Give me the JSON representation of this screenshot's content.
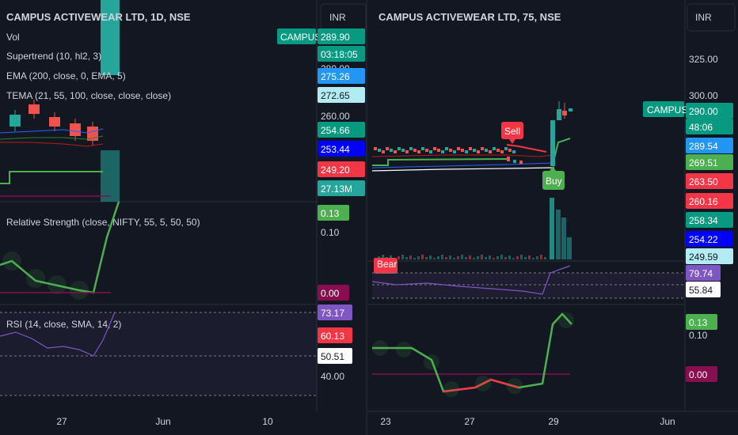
{
  "colors": {
    "bg": "#131722",
    "grid": "#1e222d",
    "up": "#26a69a",
    "down": "#ef5350",
    "green": "#4caf50",
    "red": "#f23645",
    "purple": "#7e57c2",
    "maroon": "#880e4f",
    "text": "#d1d4dc"
  },
  "left": {
    "title": "CAMPUS ACTIVEWEAR LTD, 1D, NSE",
    "currency": "INR",
    "indicators": [
      "Vol",
      "Supertrend (10, hl2, 3)",
      "EMA (200, close, 0, EMA, 5)",
      "TEMA (21, 55, 100, close, close, close)"
    ],
    "symbol_tag": "CAMPUS",
    "price_tags": [
      {
        "text": "289.90",
        "bg": "#089981",
        "fg": "#ffffff"
      },
      {
        "text": "03:18:05",
        "bg": "#089981",
        "fg": "#ffffff"
      },
      {
        "text": "280.00",
        "bg": "",
        "fg": "#d1d4dc"
      },
      {
        "text": "275.26",
        "bg": "#2196f3",
        "fg": "#ffffff"
      },
      {
        "text": "272.65",
        "bg": "#b2ebf2",
        "fg": "#131722"
      },
      {
        "text": "260.00",
        "bg": "",
        "fg": "#d1d4dc"
      },
      {
        "text": "254.66",
        "bg": "#089981",
        "fg": "#ffffff"
      },
      {
        "text": "253.44",
        "bg": "#0000ff",
        "fg": "#ffffff"
      },
      {
        "text": "249.20",
        "bg": "#f23645",
        "fg": "#ffffff"
      },
      {
        "text": "27.13M",
        "bg": "#26a69a",
        "fg": "#ffffff"
      }
    ],
    "rs_pane": {
      "label": "Relative Strength (close, NIFTY, 55, 5, 50, 50)",
      "tags": [
        {
          "text": "0.13",
          "bg": "#4caf50",
          "fg": "#ffffff"
        },
        {
          "text": "0.10",
          "bg": "",
          "fg": "#d1d4dc"
        },
        {
          "text": "0.00",
          "bg": "#880e4f",
          "fg": "#ffffff"
        }
      ]
    },
    "rsi_pane": {
      "label": "RSI (14, close, SMA, 14, 2)",
      "tags": [
        {
          "text": "73.17",
          "bg": "#7e57c2",
          "fg": "#ffffff"
        },
        {
          "text": "60.13",
          "bg": "#f23645",
          "fg": "#ffffff"
        },
        {
          "text": "50.51",
          "bg": "#ffffff",
          "fg": "#131722"
        },
        {
          "text": "40.00",
          "bg": "",
          "fg": "#d1d4dc"
        }
      ]
    },
    "time_labels": [
      "27",
      "Jun",
      "10"
    ]
  },
  "right": {
    "title": "CAMPUS ACTIVEWEAR LTD, 75, NSE",
    "currency": "INR",
    "symbol_tag": "CAMPUS",
    "signals": [
      "Sell",
      "Buy",
      "Bear"
    ],
    "price_tags": [
      {
        "text": "325.00",
        "bg": "",
        "fg": "#d1d4dc"
      },
      {
        "text": "300.00",
        "bg": "",
        "fg": "#d1d4dc"
      },
      {
        "text": "290.00",
        "bg": "#089981",
        "fg": "#ffffff"
      },
      {
        "text": "48:06",
        "bg": "#089981",
        "fg": "#ffffff"
      },
      {
        "text": "289.54",
        "bg": "#2196f3",
        "fg": "#ffffff"
      },
      {
        "text": "269.51",
        "bg": "#4caf50",
        "fg": "#ffffff"
      },
      {
        "text": "263.50",
        "bg": "#f23645",
        "fg": "#ffffff"
      },
      {
        "text": "260.16",
        "bg": "#f23645",
        "fg": "#ffffff"
      },
      {
        "text": "258.34",
        "bg": "#089981",
        "fg": "#ffffff"
      },
      {
        "text": "254.22",
        "bg": "#0000ff",
        "fg": "#ffffff"
      },
      {
        "text": "249.59",
        "bg": "#b2ebf2",
        "fg": "#131722"
      }
    ],
    "rsi_tags": [
      {
        "text": "79.74",
        "bg": "#7e57c2",
        "fg": "#ffffff"
      },
      {
        "text": "55.84",
        "bg": "#ffffff",
        "fg": "#131722"
      }
    ],
    "rs_tags": [
      {
        "text": "0.13",
        "bg": "#4caf50",
        "fg": "#ffffff"
      },
      {
        "text": "0.10",
        "bg": "",
        "fg": "#d1d4dc"
      },
      {
        "text": "0.00",
        "bg": "#880e4f",
        "fg": "#ffffff"
      }
    ],
    "time_labels": [
      "23",
      "27",
      "29",
      "Jun"
    ]
  }
}
